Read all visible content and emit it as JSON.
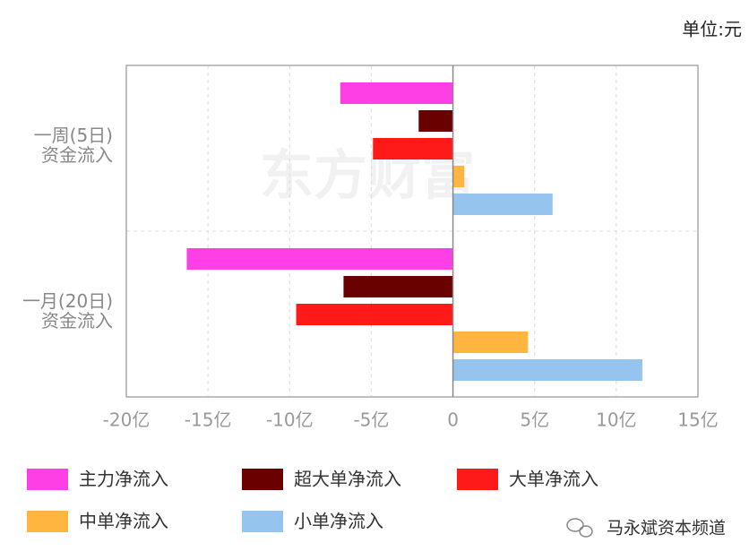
{
  "chart_data": {
    "type": "hbar",
    "unit": "单位:元",
    "watermark": "东方财富",
    "source": "马永斌资本频道",
    "categories": [
      "一周(5日)\n资金流入",
      "一月(20日)\n资金流入"
    ],
    "series": [
      {
        "name": "主力净流入",
        "color": "#ff3fe6",
        "values": [
          -6.9,
          -16.3
        ]
      },
      {
        "name": "超大单净流入",
        "color": "#6b0000",
        "values": [
          -2.1,
          -6.7
        ]
      },
      {
        "name": "大单净流入",
        "color": "#ff1a1a",
        "values": [
          -4.9,
          -9.6
        ]
      },
      {
        "name": "中单净流入",
        "color": "#ffb53f",
        "values": [
          0.7,
          4.6
        ]
      },
      {
        "name": "小单净流入",
        "color": "#95c4ee",
        "values": [
          6.1,
          11.6
        ]
      }
    ],
    "xlim": [
      -20,
      15
    ],
    "xticks": [
      {
        "value": -20,
        "label": "-20亿"
      },
      {
        "value": -15,
        "label": "-15亿"
      },
      {
        "value": -10,
        "label": "-10亿"
      },
      {
        "value": -5,
        "label": "-5亿"
      },
      0,
      {
        "value": 5,
        "label": "5亿"
      },
      {
        "value": 10,
        "label": "10亿"
      },
      {
        "value": 15,
        "label": "15亿"
      }
    ],
    "grid": true
  }
}
